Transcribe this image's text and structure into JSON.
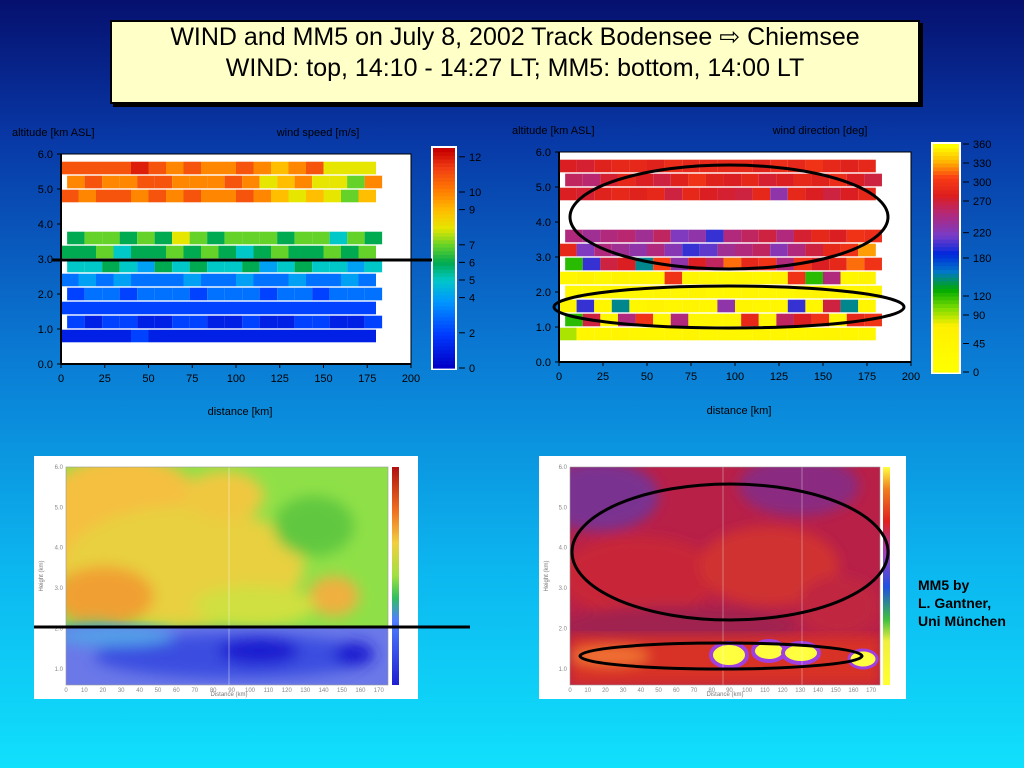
{
  "title": {
    "line1": "WIND and MM5 on July 8, 2002 Track Bodensee ⇨ Chiemsee",
    "line2": "WIND: top, 14:10 - 14:27 LT; MM5: bottom, 14:00 LT"
  },
  "credit": {
    "line1": "MM5 by",
    "line2": "L. Gantner,",
    "line3": "Uni München"
  },
  "chart_data": [
    {
      "type": "heatmap",
      "title": "wind speed [m/s]",
      "ylabel": "altitude [km ASL]",
      "xlabel": "distance [km]",
      "xlim": [
        0,
        200
      ],
      "ylim": [
        0,
        6
      ],
      "x_ticks": [
        "0",
        "25",
        "50",
        "75",
        "100",
        "125",
        "150",
        "175",
        "200"
      ],
      "y_ticks": [
        "0.0",
        "1.0",
        "2.0",
        "3.0",
        "4.0",
        "5.0",
        "6.0"
      ],
      "colorbar_ticks": [
        "0",
        "2",
        "4",
        "5",
        "6",
        "7",
        "9",
        "10",
        "12"
      ],
      "colorbar_range": [
        0,
        12.5
      ],
      "rows_alt_km": [
        5.6,
        5.2,
        4.8,
        3.6,
        3.2,
        2.8,
        2.4,
        2.0,
        1.6,
        1.2,
        0.8
      ],
      "col_step_km": 10,
      "values": [
        [
          11,
          11,
          11,
          11,
          12,
          11,
          10,
          11,
          10,
          10,
          11,
          10,
          9,
          10,
          11,
          8,
          8,
          8
        ],
        [
          10,
          11,
          10,
          10,
          11,
          11,
          10,
          10,
          10,
          11,
          10,
          8,
          9,
          10,
          8,
          8,
          7,
          10
        ],
        [
          11,
          10,
          11,
          11,
          10,
          11,
          10,
          11,
          10,
          10,
          11,
          10,
          9,
          8,
          9,
          8,
          7,
          9
        ],
        [
          6,
          7,
          7,
          6,
          7,
          6,
          8,
          7,
          6,
          7,
          7,
          7,
          6,
          7,
          7,
          5,
          7,
          6
        ],
        [
          6,
          6,
          7,
          5,
          6,
          6,
          7,
          6,
          7,
          6,
          5,
          6,
          7,
          6,
          6,
          7,
          6,
          7
        ],
        [
          5,
          5,
          6,
          5,
          4,
          6,
          5,
          6,
          5,
          5,
          6,
          4,
          5,
          6,
          5,
          5,
          4,
          5
        ],
        [
          3,
          4,
          3,
          4,
          3,
          3,
          3,
          4,
          3,
          3,
          4,
          3,
          3,
          4,
          3,
          3,
          4,
          3
        ],
        [
          2,
          3,
          3,
          2,
          3,
          3,
          3,
          2,
          3,
          3,
          3,
          2,
          3,
          3,
          2,
          3,
          3,
          3
        ],
        [
          2,
          2,
          2,
          2,
          2,
          2,
          2,
          2,
          2,
          2,
          2,
          2,
          2,
          2,
          2,
          2,
          2,
          2
        ],
        [
          2,
          1,
          2,
          2,
          1,
          1,
          2,
          2,
          1,
          1,
          2,
          1,
          1,
          2,
          2,
          1,
          1,
          2
        ],
        [
          1,
          1,
          1,
          1,
          2,
          1,
          1,
          1,
          1,
          1,
          1,
          1,
          1,
          1,
          1,
          1,
          1,
          1
        ]
      ]
    },
    {
      "type": "heatmap",
      "title": "wind direction [deg]",
      "ylabel": "altitude [km ASL]",
      "xlabel": "distance [km]",
      "xlim": [
        0,
        200
      ],
      "ylim": [
        0,
        6
      ],
      "x_ticks": [
        "0",
        "25",
        "50",
        "75",
        "100",
        "125",
        "150",
        "175",
        "200"
      ],
      "y_ticks": [
        "0.0",
        "1.0",
        "2.0",
        "3.0",
        "4.0",
        "5.0",
        "6.0"
      ],
      "colorbar_ticks": [
        "0",
        "45",
        "90",
        "120",
        "180",
        "220",
        "270",
        "300",
        "330",
        "360"
      ],
      "colorbar_range": [
        0,
        360
      ],
      "rows_alt_km": [
        5.6,
        5.2,
        4.8,
        3.6,
        3.2,
        2.8,
        2.4,
        2.0,
        1.6,
        1.2,
        0.8
      ],
      "col_step_km": 10,
      "values": [
        [
          280,
          275,
          285,
          290,
          290,
          285,
          295,
          290,
          290,
          290,
          290,
          285,
          295,
          290,
          300,
          290,
          285,
          290
        ],
        [
          260,
          255,
          275,
          290,
          280,
          270,
          285,
          300,
          285,
          280,
          290,
          275,
          280,
          290,
          285,
          295,
          280,
          270
        ],
        [
          280,
          275,
          285,
          290,
          285,
          290,
          270,
          290,
          280,
          275,
          270,
          290,
          230,
          290,
          280,
          270,
          280,
          290
        ],
        [
          250,
          240,
          250,
          255,
          240,
          260,
          220,
          230,
          200,
          250,
          260,
          270,
          250,
          275,
          290,
          280,
          300,
          295
        ],
        [
          290,
          220,
          250,
          240,
          230,
          250,
          225,
          200,
          210,
          240,
          250,
          260,
          225,
          250,
          270,
          290,
          300,
          330
        ],
        [
          120,
          200,
          270,
          280,
          150,
          310,
          230,
          280,
          260,
          320,
          290,
          300,
          250,
          300,
          280,
          290,
          320,
          300
        ],
        [
          45,
          60,
          40,
          55,
          50,
          45,
          300,
          50,
          45,
          40,
          50,
          45,
          60,
          300,
          120,
          250,
          45,
          55
        ],
        [
          40,
          45,
          50,
          45,
          40,
          50,
          45,
          55,
          40,
          45,
          50,
          45,
          40,
          50,
          60,
          55,
          45,
          50
        ],
        [
          50,
          200,
          45,
          150,
          40,
          60,
          45,
          50,
          45,
          230,
          50,
          45,
          40,
          200,
          45,
          270,
          150,
          45
        ],
        [
          120,
          270,
          45,
          250,
          300,
          45,
          250,
          40,
          45,
          50,
          290,
          45,
          260,
          280,
          300,
          45,
          290,
          300
        ],
        [
          90,
          45,
          40,
          50,
          45,
          40,
          45,
          50,
          40,
          45,
          40,
          50,
          45,
          40,
          45,
          50,
          45,
          40
        ]
      ]
    },
    {
      "type": "heatmap",
      "title": "",
      "ylabel": "Height (km)",
      "xlabel": "Distance (km)",
      "xlim": [
        0,
        175
      ],
      "ylim": [
        0.6,
        6.0
      ],
      "x_ticks": [
        "0",
        "10",
        "20",
        "30",
        "40",
        "50",
        "60",
        "70",
        "80",
        "90",
        "100",
        "110",
        "120",
        "130",
        "140",
        "150",
        "160",
        "170"
      ],
      "y_ticks": [
        "1.0",
        "2.0",
        "3.0",
        "4.0",
        "5.0",
        "6.0"
      ]
    },
    {
      "type": "heatmap",
      "title": "",
      "ylabel": "Height (km)",
      "xlabel": "Distance (km)",
      "xlim": [
        0,
        175
      ],
      "ylim": [
        0.6,
        6.0
      ],
      "x_ticks": [
        "0",
        "10",
        "20",
        "30",
        "40",
        "50",
        "60",
        "70",
        "80",
        "90",
        "100",
        "110",
        "120",
        "130",
        "140",
        "150",
        "160",
        "170"
      ],
      "y_ticks": [
        "1.0",
        "2.0",
        "3.0",
        "4.0",
        "5.0",
        "6.0"
      ]
    }
  ]
}
